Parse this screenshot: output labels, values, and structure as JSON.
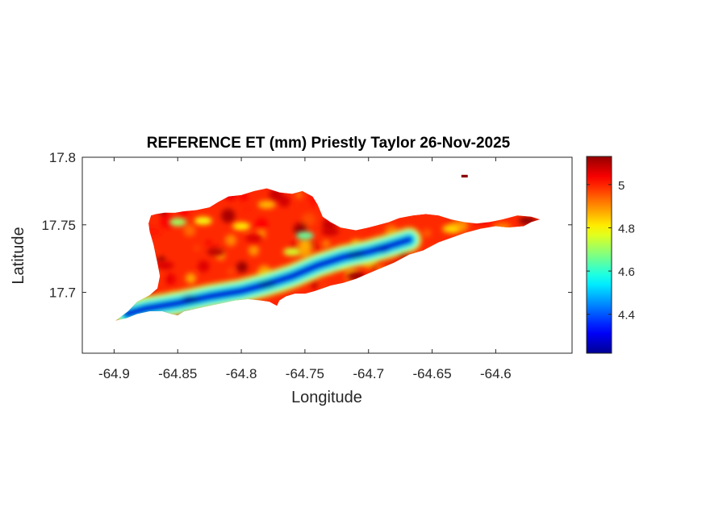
{
  "chart_data": {
    "type": "heatmap",
    "title": "REFERENCE ET (mm) Priestly Taylor 26-Nov-2025",
    "xlabel": "Longitude",
    "ylabel": "Latitude",
    "xlim": [
      -64.925,
      -64.54
    ],
    "ylim": [
      17.655,
      17.8
    ],
    "x_ticks": [
      -64.9,
      -64.85,
      -64.8,
      -64.75,
      -64.7,
      -64.65,
      -64.6
    ],
    "x_tick_labels": [
      "-64.9",
      "-64.85",
      "-64.8",
      "-64.75",
      "-64.7",
      "-64.65",
      "-64.6"
    ],
    "y_ticks": [
      17.7,
      17.75,
      17.8
    ],
    "y_tick_labels": [
      "17.7",
      "17.75",
      "17.8"
    ],
    "colorbar": {
      "colormap": "jet",
      "range": [
        4.22,
        5.13
      ],
      "ticks": [
        4.4,
        4.6,
        4.8,
        5
      ],
      "tick_labels": [
        "4.4",
        "4.6",
        "4.8",
        "5"
      ]
    },
    "grid": false,
    "region": {
      "outline": [
        [
          -64.899,
          17.679
        ],
        [
          -64.889,
          17.686
        ],
        [
          -64.882,
          17.693
        ],
        [
          -64.878,
          17.695
        ],
        [
          -64.872,
          17.698
        ],
        [
          -64.866,
          17.703
        ],
        [
          -64.864,
          17.712
        ],
        [
          -64.866,
          17.722
        ],
        [
          -64.869,
          17.735
        ],
        [
          -64.872,
          17.745
        ],
        [
          -64.873,
          17.751
        ],
        [
          -64.871,
          17.757
        ],
        [
          -64.867,
          17.758
        ],
        [
          -64.86,
          17.759
        ],
        [
          -64.852,
          17.759
        ],
        [
          -64.845,
          17.76
        ],
        [
          -64.835,
          17.761
        ],
        [
          -64.825,
          17.763
        ],
        [
          -64.818,
          17.767
        ],
        [
          -64.81,
          17.771
        ],
        [
          -64.8,
          17.772
        ],
        [
          -64.79,
          17.775
        ],
        [
          -64.78,
          17.777
        ],
        [
          -64.77,
          17.774
        ],
        [
          -64.76,
          17.773
        ],
        [
          -64.752,
          17.775
        ],
        [
          -64.744,
          17.771
        ],
        [
          -64.74,
          17.765
        ],
        [
          -64.736,
          17.756
        ],
        [
          -64.73,
          17.752
        ],
        [
          -64.722,
          17.748
        ],
        [
          -64.71,
          17.746
        ],
        [
          -64.7,
          17.748
        ],
        [
          -64.692,
          17.75
        ],
        [
          -64.684,
          17.752
        ],
        [
          -64.676,
          17.755
        ],
        [
          -64.665,
          17.757
        ],
        [
          -64.655,
          17.758
        ],
        [
          -64.645,
          17.757
        ],
        [
          -64.635,
          17.754
        ],
        [
          -64.625,
          17.752
        ],
        [
          -64.615,
          17.751
        ],
        [
          -64.605,
          17.752
        ],
        [
          -64.595,
          17.754
        ],
        [
          -64.583,
          17.757
        ],
        [
          -64.572,
          17.756
        ],
        [
          -64.565,
          17.754
        ],
        [
          -64.572,
          17.752
        ],
        [
          -64.578,
          17.749
        ],
        [
          -64.59,
          17.748
        ],
        [
          -64.6,
          17.749
        ],
        [
          -64.612,
          17.747
        ],
        [
          -64.624,
          17.744
        ],
        [
          -64.633,
          17.741
        ],
        [
          -64.645,
          17.737
        ],
        [
          -64.657,
          17.731
        ],
        [
          -64.668,
          17.728
        ],
        [
          -64.68,
          17.722
        ],
        [
          -64.69,
          17.718
        ],
        [
          -64.7,
          17.714
        ],
        [
          -64.71,
          17.71
        ],
        [
          -64.72,
          17.707
        ],
        [
          -64.73,
          17.705
        ],
        [
          -64.742,
          17.701
        ],
        [
          -64.75,
          17.699
        ],
        [
          -64.758,
          17.699
        ],
        [
          -64.765,
          17.697
        ],
        [
          -64.77,
          17.694
        ],
        [
          -64.772,
          17.69
        ],
        [
          -64.778,
          17.693
        ],
        [
          -64.785,
          17.694
        ],
        [
          -64.795,
          17.695
        ],
        [
          -64.805,
          17.694
        ],
        [
          -64.815,
          17.692
        ],
        [
          -64.825,
          17.69
        ],
        [
          -64.835,
          17.688
        ],
        [
          -64.845,
          17.686
        ],
        [
          -64.85,
          17.683
        ],
        [
          -64.855,
          17.684
        ],
        [
          -64.862,
          17.686
        ],
        [
          -64.872,
          17.686
        ],
        [
          -64.882,
          17.684
        ],
        [
          -64.89,
          17.681
        ]
      ],
      "islet": [
        [
          -64.627,
          17.787
        ],
        [
          -64.622,
          17.787
        ],
        [
          -64.622,
          17.785
        ],
        [
          -64.627,
          17.785
        ]
      ]
    },
    "features": [
      {
        "kind": "low-band",
        "path": [
          [
            -64.89,
            17.684
          ],
          [
            -64.875,
            17.688
          ],
          [
            -64.85,
            17.692
          ],
          [
            -64.825,
            17.697
          ],
          [
            -64.8,
            17.701
          ],
          [
            -64.78,
            17.706
          ],
          [
            -64.76,
            17.712
          ],
          [
            -64.74,
            17.72
          ],
          [
            -64.72,
            17.726
          ],
          [
            -64.7,
            17.73
          ],
          [
            -64.685,
            17.734
          ],
          [
            -64.668,
            17.739
          ]
        ],
        "value": 4.3
      },
      {
        "kind": "cell",
        "x": -64.84,
        "y": 17.695,
        "value": 4.25
      },
      {
        "kind": "cell",
        "x": -64.78,
        "y": 17.706,
        "value": 4.25
      },
      {
        "kind": "cell",
        "x": -64.71,
        "y": 17.728,
        "value": 4.25
      },
      {
        "kind": "cell",
        "x": -64.69,
        "y": 17.732,
        "value": 4.28
      },
      {
        "kind": "cell",
        "x": -64.75,
        "y": 17.742,
        "value": 4.65
      },
      {
        "kind": "cell",
        "x": -64.76,
        "y": 17.73,
        "value": 4.75
      },
      {
        "kind": "cell",
        "x": -64.85,
        "y": 17.752,
        "value": 4.7
      },
      {
        "kind": "cell",
        "x": -64.83,
        "y": 17.753,
        "value": 4.78
      },
      {
        "kind": "cell",
        "x": -64.8,
        "y": 17.749,
        "value": 4.8
      },
      {
        "kind": "cell",
        "x": -64.78,
        "y": 17.765,
        "value": 4.85
      },
      {
        "kind": "cell",
        "x": -64.635,
        "y": 17.747,
        "value": 4.82
      },
      {
        "kind": "cell",
        "x": -64.595,
        "y": 17.748,
        "value": 4.9
      },
      {
        "kind": "cell",
        "x": -64.86,
        "y": 17.72,
        "value": 5.05
      },
      {
        "kind": "cell",
        "x": -64.82,
        "y": 17.73,
        "value": 5.08
      },
      {
        "kind": "cell",
        "x": -64.79,
        "y": 17.74,
        "value": 5.05
      },
      {
        "kind": "cell",
        "x": -64.73,
        "y": 17.745,
        "value": 5.06
      },
      {
        "kind": "cell",
        "x": -64.71,
        "y": 17.712,
        "value": 5.1
      },
      {
        "kind": "cell",
        "x": -64.575,
        "y": 17.753,
        "value": 5.12
      },
      {
        "kind": "cell",
        "x": -64.87,
        "y": 17.745,
        "value": 5.0
      }
    ]
  }
}
